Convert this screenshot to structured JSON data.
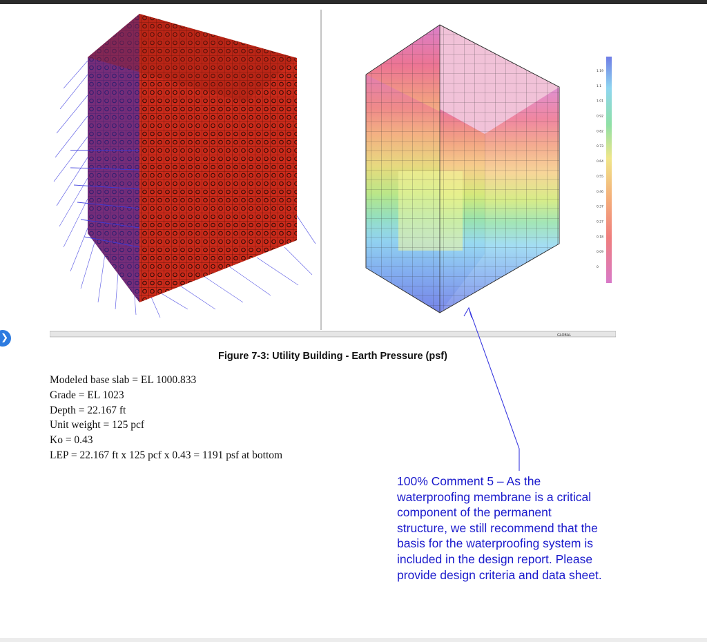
{
  "figure": {
    "caption": "Figure 7-3: Utility Building - Earth Pressure (psf)",
    "legend_labels": [
      "1.19",
      "1.1",
      "1.01",
      "0.92",
      "0.82",
      "0.73",
      "0.64",
      "0.55",
      "0.46",
      "0.37",
      "0.27",
      "0.18",
      "0.09",
      "0"
    ],
    "legend_colors": [
      "#6f7de6",
      "#7fb0f0",
      "#8fd6f0",
      "#9ae8d8",
      "#8fe0a6",
      "#a8e07a",
      "#cfe86e",
      "#f0e68a",
      "#f5cc82",
      "#f4b07a",
      "#f29a78",
      "#ef7e7e",
      "#ec6c8c",
      "#d879c8"
    ],
    "status_bar_text": "GLOBAL"
  },
  "calc": {
    "lines": [
      "Modeled base slab = EL 1000.833",
      "Grade = EL 1023",
      "Depth = 22.167 ft",
      "Unit weight = 125 pcf",
      "Ko = 0.43",
      "LEP = 22.167 ft x 125 pcf x 0.43 = 1191 psf at bottom"
    ]
  },
  "comment": {
    "lines": [
      "100% Comment 5 – As the",
      "waterproofing membrane is a critical",
      "component of the permanent",
      "structure, we still recommend that the",
      "basis for the waterproofing system is",
      "included in the design report. Please",
      "provide design criteria and data sheet."
    ]
  },
  "colors": {
    "annotation_blue": "#1a1acc",
    "mesh_red": "#cc2a1a",
    "load_arrow_blue": "#3b3bdd"
  }
}
